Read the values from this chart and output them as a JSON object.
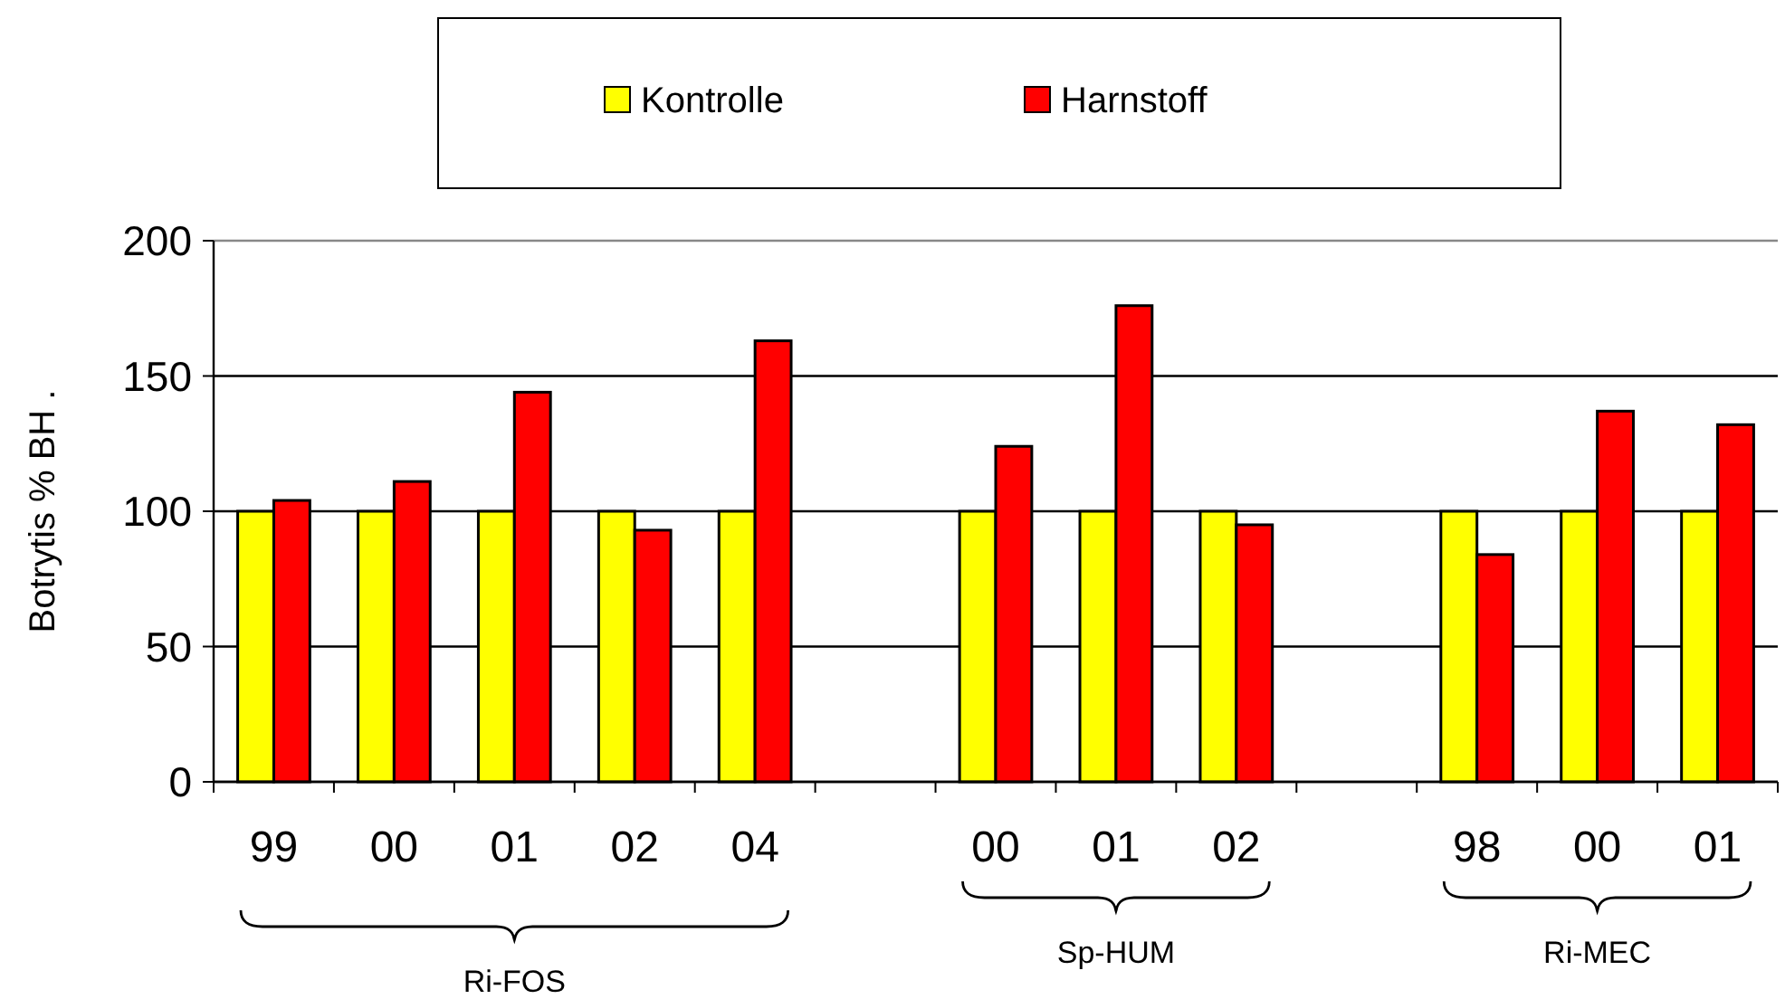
{
  "chart_data": {
    "type": "bar",
    "ylabel": "Botrytis % BH .",
    "categories": [
      "99",
      "00",
      "01",
      "02",
      "04",
      null,
      "00",
      "01",
      "02",
      null,
      "98",
      "00",
      "01"
    ],
    "series": [
      {
        "name": "Kontrolle",
        "color": "#ffff00",
        "values": [
          100,
          100,
          100,
          100,
          100,
          null,
          100,
          100,
          100,
          null,
          100,
          100,
          100
        ]
      },
      {
        "name": "Harnstoff",
        "color": "#ff0000",
        "values": [
          104,
          111,
          144,
          93,
          163,
          null,
          124,
          176,
          95,
          null,
          84,
          137,
          132
        ]
      }
    ],
    "ylim": [
      0,
      200
    ],
    "yticks": [
      0,
      50,
      100,
      150,
      200
    ],
    "grid": "y",
    "legend": "top",
    "annotations": [
      "Ri-FOS",
      "Sp-HUM",
      "Ri-MEC"
    ]
  }
}
